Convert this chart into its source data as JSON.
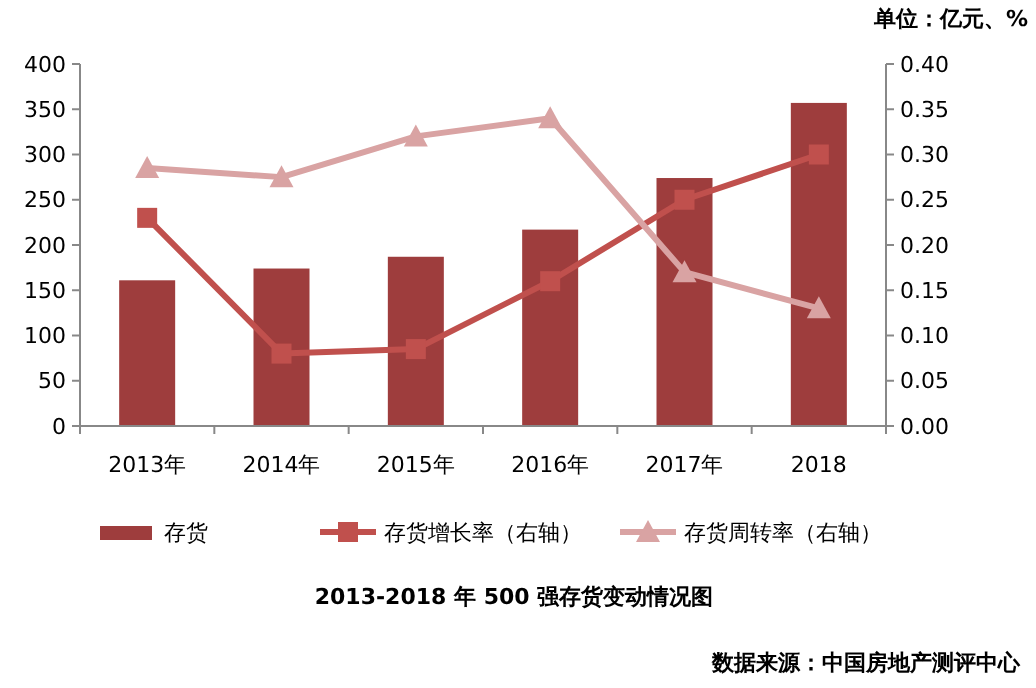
{
  "chart_data": {
    "type": "bar",
    "title": "2013-2018 年 500 强存货变动情况图",
    "subtitle": "单位：亿元、%",
    "categories": [
      "2013年",
      "2014年",
      "2015年",
      "2016年",
      "2017年",
      "2018"
    ],
    "series": [
      {
        "name": "存货",
        "color": "#9e3d3d",
        "values": [
          161,
          174,
          187,
          217,
          274,
          357
        ]
      },
      {
        "name": "存货增长率（右轴）",
        "type": "line",
        "axis": "y2",
        "marker": "square",
        "color": "#c0504d",
        "values": [
          0.23,
          0.08,
          0.085,
          0.16,
          0.25,
          0.3
        ]
      },
      {
        "name": "存货周转率（右轴）",
        "type": "line",
        "axis": "y2",
        "marker": "triangle",
        "color": "#d9a3a3",
        "values": [
          0.285,
          0.275,
          0.32,
          0.34,
          0.17,
          0.13
        ]
      }
    ],
    "ylim": [
      0,
      400
    ],
    "yticks": [
      0,
      50,
      100,
      150,
      200,
      250,
      300,
      350,
      400
    ],
    "y2lim": [
      0,
      0.4
    ],
    "y2ticks": [
      {
        "value": 0,
        "label": "0.00"
      },
      {
        "value": 0.05,
        "label": "0.05"
      },
      {
        "value": 0.1,
        "label": "0.10"
      },
      {
        "value": 0.15,
        "label": "0.15"
      },
      {
        "value": 0.2,
        "label": "0.20"
      },
      {
        "value": 0.25,
        "label": "0.25"
      },
      {
        "value": 0.3,
        "label": "0.30"
      },
      {
        "value": 0.35,
        "label": "0.35"
      },
      {
        "value": 0.4,
        "label": "0.40"
      }
    ],
    "legend": "bottom",
    "grid": false,
    "annotations": [
      "数据来源：中国房地产测评中心"
    ]
  }
}
